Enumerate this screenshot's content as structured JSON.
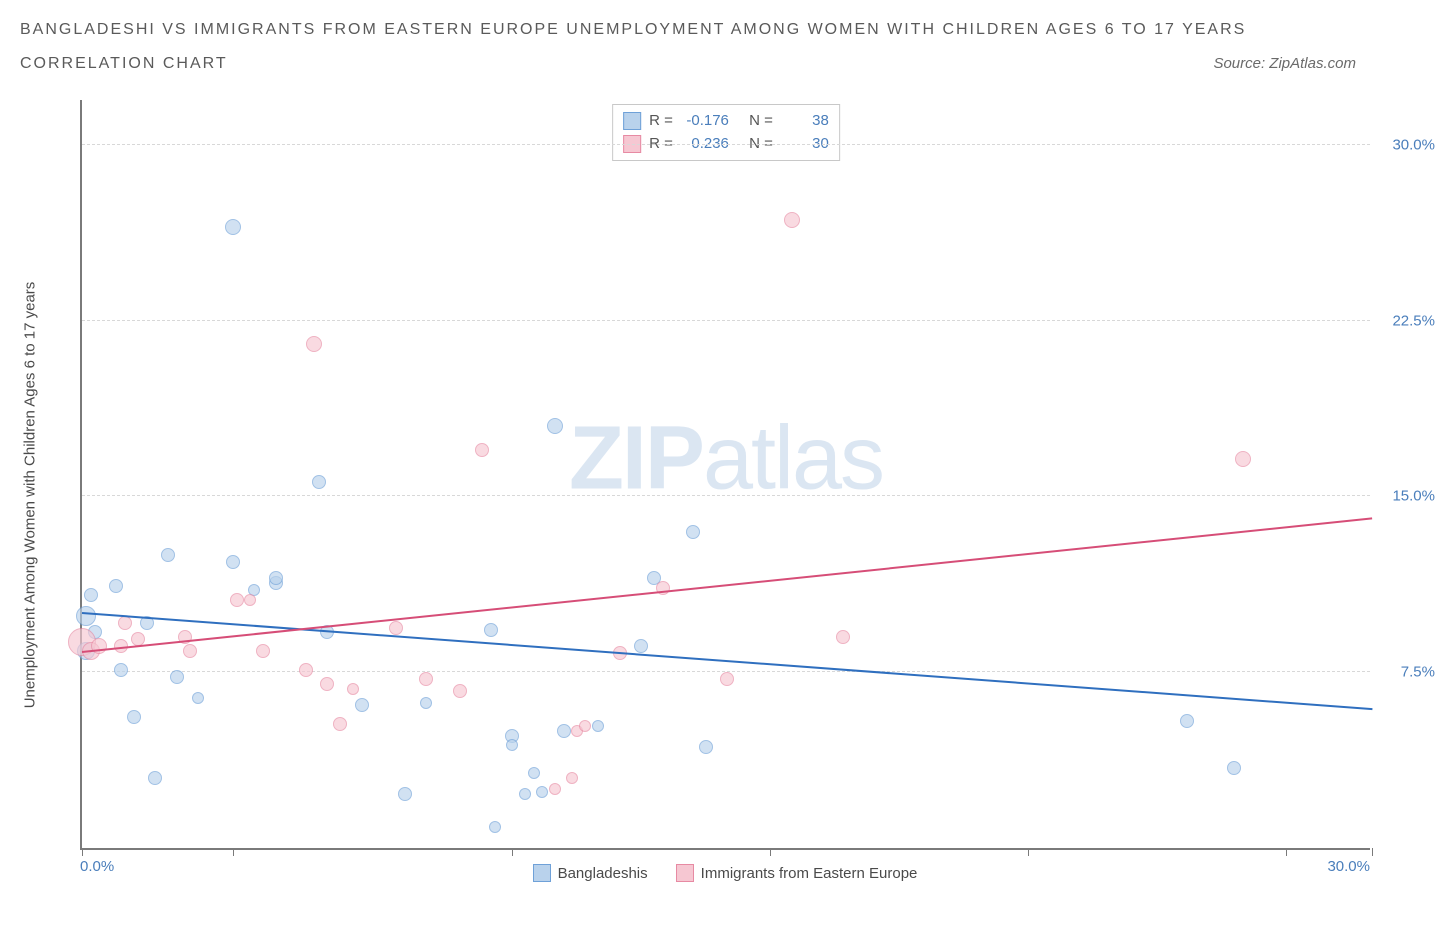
{
  "title_line1": "BANGLADESHI VS IMMIGRANTS FROM EASTERN EUROPE UNEMPLOYMENT AMONG WOMEN WITH CHILDREN AGES 6 TO 17 YEARS",
  "title_line2": "CORRELATION CHART",
  "source_label": "Source: ZipAtlas.com",
  "ylabel": "Unemployment Among Women with Children Ages 6 to 17 years",
  "watermark_bold": "ZIP",
  "watermark_light": "atlas",
  "chart": {
    "type": "scatter",
    "xlim": [
      0,
      30
    ],
    "ylim": [
      0,
      32
    ],
    "y_ticks": [
      7.5,
      15.0,
      22.5,
      30.0
    ],
    "y_tick_labels": [
      "7.5%",
      "15.0%",
      "22.5%",
      "30.0%"
    ],
    "x_ticks": [
      0,
      3.5,
      10,
      16,
      22,
      28,
      30
    ],
    "x_min_label": "0.0%",
    "x_max_label": "30.0%",
    "grid_color": "#d8d8d8",
    "axis_color": "#7a7a7a",
    "tick_label_color": "#4a7ebb",
    "background_color": "#ffffff"
  },
  "series": [
    {
      "name": "Bangladeshis",
      "fill": "#b9d2ec",
      "stroke": "#6fa1d8",
      "fill_opacity": 0.65,
      "r_stat": "-0.176",
      "n_stat": "38",
      "trend": {
        "x1": 0,
        "y1": 10.0,
        "x2": 30,
        "y2": 5.9,
        "color": "#2f6fbf",
        "width": 2
      },
      "points": [
        {
          "x": 0.1,
          "y": 9.9,
          "r": 10
        },
        {
          "x": 0.1,
          "y": 8.4,
          "r": 9
        },
        {
          "x": 0.2,
          "y": 10.8,
          "r": 7
        },
        {
          "x": 0.3,
          "y": 9.2,
          "r": 7
        },
        {
          "x": 0.8,
          "y": 11.2,
          "r": 7
        },
        {
          "x": 0.9,
          "y": 7.6,
          "r": 7
        },
        {
          "x": 1.2,
          "y": 5.6,
          "r": 7
        },
        {
          "x": 1.5,
          "y": 9.6,
          "r": 7
        },
        {
          "x": 1.7,
          "y": 3.0,
          "r": 7
        },
        {
          "x": 2.0,
          "y": 12.5,
          "r": 7
        },
        {
          "x": 2.2,
          "y": 7.3,
          "r": 7
        },
        {
          "x": 2.7,
          "y": 6.4,
          "r": 6
        },
        {
          "x": 3.5,
          "y": 12.2,
          "r": 7
        },
        {
          "x": 3.5,
          "y": 26.5,
          "r": 8
        },
        {
          "x": 4.5,
          "y": 11.3,
          "r": 7
        },
        {
          "x": 4.5,
          "y": 11.5,
          "r": 7
        },
        {
          "x": 5.5,
          "y": 15.6,
          "r": 7
        },
        {
          "x": 5.7,
          "y": 9.2,
          "r": 7
        },
        {
          "x": 6.5,
          "y": 6.1,
          "r": 7
        },
        {
          "x": 7.5,
          "y": 2.3,
          "r": 7
        },
        {
          "x": 8.0,
          "y": 6.2,
          "r": 6
        },
        {
          "x": 9.5,
          "y": 9.3,
          "r": 7
        },
        {
          "x": 9.6,
          "y": 0.9,
          "r": 6
        },
        {
          "x": 10.0,
          "y": 4.8,
          "r": 7
        },
        {
          "x": 10.3,
          "y": 2.3,
          "r": 6
        },
        {
          "x": 10.5,
          "y": 3.2,
          "r": 6
        },
        {
          "x": 10.7,
          "y": 2.4,
          "r": 6
        },
        {
          "x": 11.0,
          "y": 18.0,
          "r": 8
        },
        {
          "x": 11.2,
          "y": 5.0,
          "r": 7
        },
        {
          "x": 12.0,
          "y": 5.2,
          "r": 6
        },
        {
          "x": 13.3,
          "y": 11.5,
          "r": 7
        },
        {
          "x": 13.0,
          "y": 8.6,
          "r": 7
        },
        {
          "x": 14.2,
          "y": 13.5,
          "r": 7
        },
        {
          "x": 14.5,
          "y": 4.3,
          "r": 7
        },
        {
          "x": 25.7,
          "y": 5.4,
          "r": 7
        },
        {
          "x": 26.8,
          "y": 3.4,
          "r": 7
        },
        {
          "x": 10.0,
          "y": 4.4,
          "r": 6
        },
        {
          "x": 4.0,
          "y": 11.0,
          "r": 6
        }
      ]
    },
    {
      "name": "Immigrants from Eastern Europe",
      "fill": "#f6c7d2",
      "stroke": "#e78aa3",
      "fill_opacity": 0.65,
      "r_stat": "0.236",
      "n_stat": "30",
      "trend": {
        "x1": 0,
        "y1": 8.3,
        "x2": 30,
        "y2": 14.0,
        "color": "#d64d77",
        "width": 2
      },
      "points": [
        {
          "x": 0.0,
          "y": 8.8,
          "r": 14
        },
        {
          "x": 0.2,
          "y": 8.4,
          "r": 9
        },
        {
          "x": 0.4,
          "y": 8.6,
          "r": 8
        },
        {
          "x": 0.9,
          "y": 8.6,
          "r": 7
        },
        {
          "x": 1.0,
          "y": 9.6,
          "r": 7
        },
        {
          "x": 1.3,
          "y": 8.9,
          "r": 7
        },
        {
          "x": 2.4,
          "y": 9.0,
          "r": 7
        },
        {
          "x": 2.5,
          "y": 8.4,
          "r": 7
        },
        {
          "x": 3.6,
          "y": 10.6,
          "r": 7
        },
        {
          "x": 3.9,
          "y": 10.6,
          "r": 6
        },
        {
          "x": 4.2,
          "y": 8.4,
          "r": 7
        },
        {
          "x": 5.2,
          "y": 7.6,
          "r": 7
        },
        {
          "x": 5.4,
          "y": 21.5,
          "r": 8
        },
        {
          "x": 5.7,
          "y": 7.0,
          "r": 7
        },
        {
          "x": 6.0,
          "y": 5.3,
          "r": 7
        },
        {
          "x": 7.3,
          "y": 9.4,
          "r": 7
        },
        {
          "x": 8.0,
          "y": 7.2,
          "r": 7
        },
        {
          "x": 8.8,
          "y": 6.7,
          "r": 7
        },
        {
          "x": 9.3,
          "y": 17.0,
          "r": 7
        },
        {
          "x": 11.0,
          "y": 2.5,
          "r": 6
        },
        {
          "x": 11.4,
          "y": 3.0,
          "r": 6
        },
        {
          "x": 11.5,
          "y": 5.0,
          "r": 6
        },
        {
          "x": 11.7,
          "y": 5.2,
          "r": 6
        },
        {
          "x": 12.5,
          "y": 8.3,
          "r": 7
        },
        {
          "x": 13.5,
          "y": 11.1,
          "r": 7
        },
        {
          "x": 15.0,
          "y": 7.2,
          "r": 7
        },
        {
          "x": 16.5,
          "y": 26.8,
          "r": 8
        },
        {
          "x": 17.7,
          "y": 9.0,
          "r": 7
        },
        {
          "x": 27.0,
          "y": 16.6,
          "r": 8
        },
        {
          "x": 6.3,
          "y": 6.8,
          "r": 6
        }
      ]
    }
  ],
  "legend_stats_labels": {
    "r": "R =",
    "n": "N ="
  },
  "bottom_legend": {
    "item1": "Bangladeshis",
    "item2": "Immigrants from Eastern Europe"
  }
}
